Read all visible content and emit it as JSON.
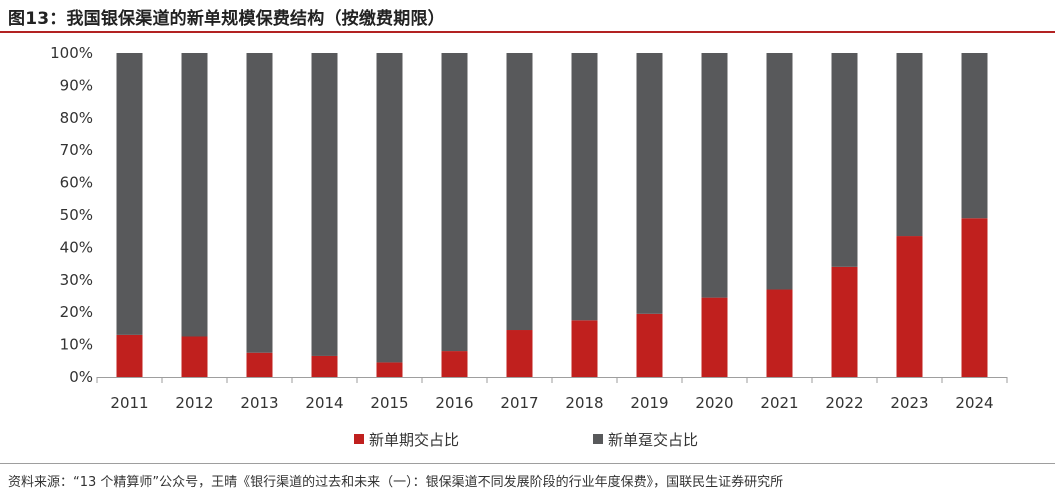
{
  "title": "图13：我国银保渠道的新单规模保费结构（按缴费期限）",
  "source": "资料来源：“13 个精算师”公众号，王晴《银行渠道的过去和未来（一）：银保渠道不同发展阶段的行业年度保费》，国联民生证券研究所",
  "colors": {
    "periodic": "#c0201e",
    "single": "#58595b",
    "axis": "#9e9e9e"
  },
  "chart_data": {
    "type": "bar",
    "stacked": true,
    "title": "我国银保渠道的新单规模保费结构（按缴费期限）",
    "categories": [
      "2011",
      "2012",
      "2013",
      "2014",
      "2015",
      "2016",
      "2017",
      "2018",
      "2019",
      "2020",
      "2021",
      "2022",
      "2023",
      "2024"
    ],
    "series": [
      {
        "name": "新单期交占比",
        "values": [
          13,
          12.5,
          7.5,
          6.5,
          4.5,
          8,
          14.5,
          17.5,
          19.5,
          24.5,
          27,
          34,
          43.5,
          49
        ]
      },
      {
        "name": "新单趸交占比",
        "values": [
          87,
          87.5,
          92.5,
          93.5,
          95.5,
          92,
          85.5,
          82.5,
          80.5,
          75.5,
          73,
          66,
          56.5,
          51
        ]
      }
    ],
    "yticks": [
      "0%",
      "10%",
      "20%",
      "30%",
      "40%",
      "50%",
      "60%",
      "70%",
      "80%",
      "90%",
      "100%"
    ],
    "ylim": [
      0,
      100
    ],
    "legend_position": "bottom"
  }
}
